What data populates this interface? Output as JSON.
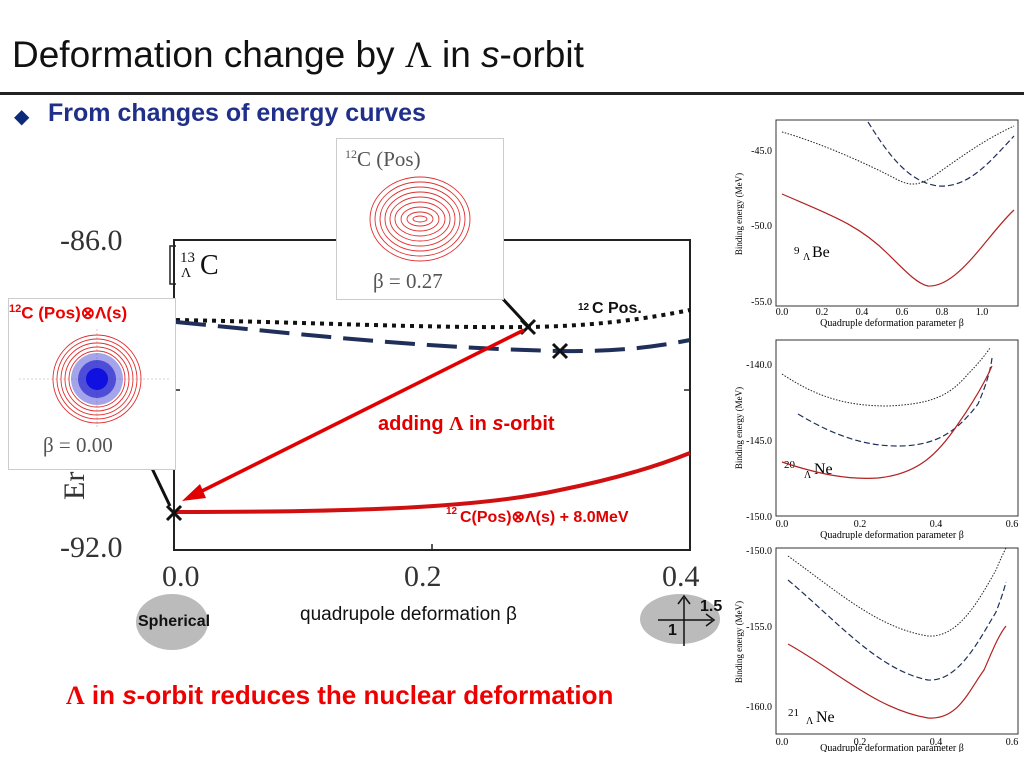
{
  "title": {
    "prefix": "Deformation change by ",
    "lambda": "Λ",
    "in": " in ",
    "s": "s",
    "suffix": "-orbit"
  },
  "bullet": {
    "icon": "diamond-icon",
    "text": "From changes of energy curves"
  },
  "main_plot": {
    "y_ticks": [
      "-86.0",
      "-92.0"
    ],
    "x_ticks": [
      "0.0",
      "0.2",
      "0.4"
    ],
    "ylabel_fragment": "Er",
    "xlabel": "quadrupole deformation β",
    "nucleus": {
      "mass": "13",
      "sub": "Λ",
      "sym": "C"
    },
    "label_12c_pos": {
      "sup": "12",
      "text": "C Pos."
    },
    "label_adding": {
      "a": "adding  ",
      "lam": "Λ",
      "b": " in ",
      "s": "s",
      "c": "-orbit"
    },
    "label_sum": {
      "sup": "12",
      "text": "C(Pos)⊗Λ(s) + 8.0MeV"
    }
  },
  "insetA": {
    "title_sup": "12",
    "title": "C (Pos)",
    "beta": "β = 0.27"
  },
  "insetB": {
    "title_sup": "12",
    "title": "C (Pos)⊗Λ(s)",
    "beta": "β = 0.00"
  },
  "spherical": "Spherical",
  "ratio": {
    "major": "1.5",
    "minor": "1"
  },
  "conclusion": {
    "lam": "Λ",
    "a": " in ",
    "s": "s",
    "b": "-orbit reduces the nuclear deformation"
  },
  "right_plots": [
    {
      "y_ticks": [
        "-45.0",
        "-50.0",
        "-55.0"
      ],
      "x_ticks": [
        "0.0",
        "0.2",
        "0.4",
        "0.6",
        "0.8",
        "1.0"
      ],
      "ylabel": "Binding energy (MeV)",
      "xlabel": "Quadruple deformation parameter β",
      "nucleus": {
        "mass": "9",
        "sub": "Λ",
        "sym": "Be"
      }
    },
    {
      "y_ticks": [
        "-140.0",
        "-145.0",
        "-150.0"
      ],
      "x_ticks": [
        "0.0",
        "0.2",
        "0.4",
        "0.6"
      ],
      "ylabel": "Binding energy (MeV)",
      "xlabel": "Quadruple deformation parameter β",
      "nucleus": {
        "mass": "20",
        "sub": "Λ",
        "sym": "Ne"
      }
    },
    {
      "y_ticks": [
        "-150.0",
        "-155.0",
        "-160.0"
      ],
      "x_ticks": [
        "0.0",
        "0.2",
        "0.4",
        "0.6"
      ],
      "ylabel": "Binding energy (MeV)",
      "xlabel": "Quadruple deformation parameter β",
      "nucleus": {
        "mass": "21",
        "sub": "Λ",
        "sym": "Ne"
      }
    }
  ],
  "colors": {
    "red": "#e00000",
    "navy": "#1f2f5a",
    "title_blue": "#1f2f8a",
    "curve_red": "#b22222"
  }
}
